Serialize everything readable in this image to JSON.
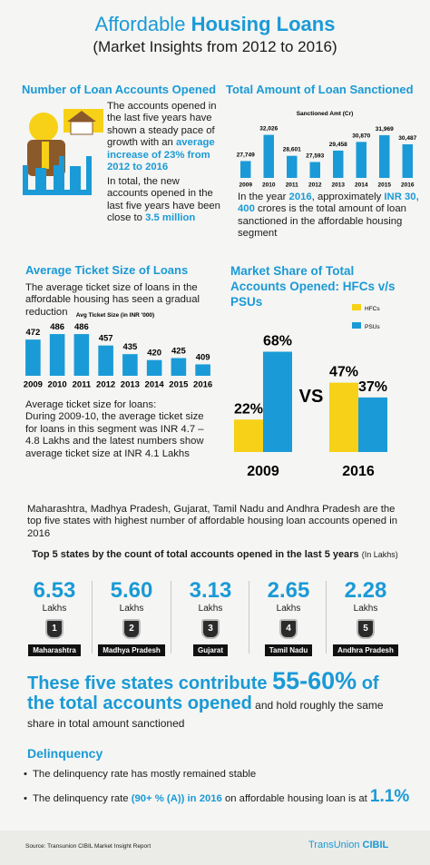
{
  "header": {
    "title_regular": "Affordable",
    "title_bold": "Housing Loans",
    "subtitle": "(Market Insights from 2012 to 2016)"
  },
  "accounts": {
    "heading": "Number of Loan Accounts Opened",
    "p1": "The accounts opened in the last five years have shown a steady pace of growth with an ",
    "p1_bold": "average increase of 23% from 2012 to 2016",
    "p2": "In total, the new accounts opened in the last five years have been close to ",
    "p2_bold": "3.5 million"
  },
  "sanctioned": {
    "heading": "Total Amount of Loan Sanctioned",
    "t1": "In the year ",
    "t2": "2016",
    "t3": ", approximately ",
    "t4": "INR 30, 400",
    "t5": " crores is the total amount of loan sanctioned in the affordable housing segment"
  },
  "ticket": {
    "heading": "Average Ticket Size of Loans",
    "intro": "The average ticket size of loans in the affordable housing has seen a gradual reduction",
    "note_title": "Average ticket size for loans:",
    "note": "During 2009-10, the average ticket size for loans in this segment was INR 4.7 – 4.8 Lakhs and the latest numbers show average ticket size at INR 4.1 Lakhs"
  },
  "share": {
    "heading": "Market Share of Total Accounts Opened: HFCs v/s PSUs",
    "vs": "VS"
  },
  "states": {
    "intro": "Maharashtra, Madhya Pradesh, Gujarat, Tamil Nadu and Andhra Pradesh are the top five states with highest number of affordable housing loan accounts opened in 2016",
    "title": "Top 5 states by the count of total accounts opened in the last 5 years",
    "title_unit": "(In Lakhs)",
    "items": [
      {
        "value": "6.53",
        "unit": "Lakhs",
        "rank": "1",
        "name": "Maharashtra"
      },
      {
        "value": "5.60",
        "unit": "Lakhs",
        "rank": "2",
        "name": "Madhya Pradesh"
      },
      {
        "value": "3.13",
        "unit": "Lakhs",
        "rank": "3",
        "name": "Gujarat"
      },
      {
        "value": "2.65",
        "unit": "Lakhs",
        "rank": "4",
        "name": "Tamil Nadu"
      },
      {
        "value": "2.28",
        "unit": "Lakhs",
        "rank": "5",
        "name": "Andhra Pradesh"
      }
    ]
  },
  "callout": {
    "a": "These five states contribute ",
    "b": "55-60%",
    "c": " of the total accounts opened",
    "d": " and hold roughly the same share in total amount sanctioned"
  },
  "delinquency": {
    "heading": "Delinquency",
    "bullet1": "The delinquency rate has mostly remained stable",
    "bullet2_a": "The delinquency rate ",
    "bullet2_b": "(90+ % (A)) in 2016",
    "bullet2_c": " on affordable housing loan is at ",
    "bullet2_d": "1.1%"
  },
  "footer": {
    "source": "Source: Transunion CIBIL Market Insight Report",
    "brand": "TransUnion",
    "brand_sub": "CIBIL"
  },
  "chart_data": [
    {
      "type": "bar",
      "title": "Sanctioned Amt (Cr)",
      "categories": [
        "2009",
        "2010",
        "2011",
        "2012",
        "2013",
        "2014",
        "2015",
        "2016"
      ],
      "values": [
        27749,
        32026,
        28601,
        27593,
        29458,
        30870,
        31969,
        30487
      ],
      "value_labels": [
        "27,749",
        "32,026",
        "28,601",
        "27,593",
        "29,458",
        "30,870",
        "31,969",
        "30,487"
      ],
      "color": "#1a9bd7",
      "ylim": [
        25000,
        33000
      ]
    },
    {
      "type": "bar",
      "title": "Avg Ticket Size (in INR '000)",
      "categories": [
        "2009",
        "2010",
        "2011",
        "2012",
        "2013",
        "2014",
        "2015",
        "2016"
      ],
      "values": [
        472,
        486,
        486,
        457,
        435,
        420,
        425,
        409
      ],
      "color": "#1a9bd7",
      "ylim": [
        380,
        500
      ]
    },
    {
      "type": "bar",
      "categories": [
        "2009",
        "2016"
      ],
      "series": [
        {
          "name": "HFCs",
          "color": "#f7d117",
          "values": [
            22,
            47
          ],
          "value_labels": [
            "22%",
            "47%"
          ]
        },
        {
          "name": "PSUs",
          "color": "#1a9bd7",
          "values": [
            68,
            37
          ],
          "value_labels": [
            "68%",
            "37%"
          ]
        }
      ],
      "ylim": [
        0,
        80
      ],
      "legend": "top-right"
    }
  ]
}
